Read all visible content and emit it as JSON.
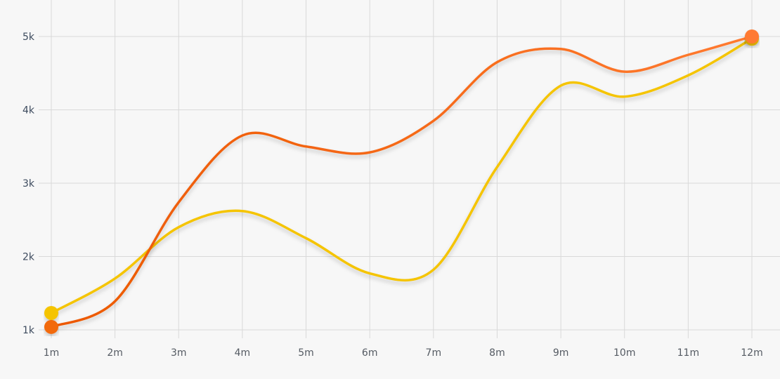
{
  "chart_data": {
    "type": "line",
    "title": "",
    "xlabel": "",
    "ylabel": "",
    "categories": [
      "1m",
      "2m",
      "3m",
      "4m",
      "5m",
      "6m",
      "7m",
      "8m",
      "9m",
      "10m",
      "11m",
      "12m"
    ],
    "y_ticks": [
      "1k",
      "2k",
      "3k",
      "4k",
      "5k"
    ],
    "ylim": [
      1000,
      5000
    ],
    "grid": true,
    "smooth": true,
    "series": [
      {
        "color": "#f5c400",
        "values": [
          1230,
          1700,
          2400,
          2620,
          2250,
          1770,
          1820,
          3220,
          4330,
          4180,
          4470,
          4970
        ]
      },
      {
        "color": "#f26a10",
        "color_end": "#ff7a30",
        "values": [
          1040,
          1390,
          2740,
          3650,
          3500,
          3420,
          3850,
          4650,
          4830,
          4520,
          4750,
          5000
        ]
      }
    ]
  }
}
